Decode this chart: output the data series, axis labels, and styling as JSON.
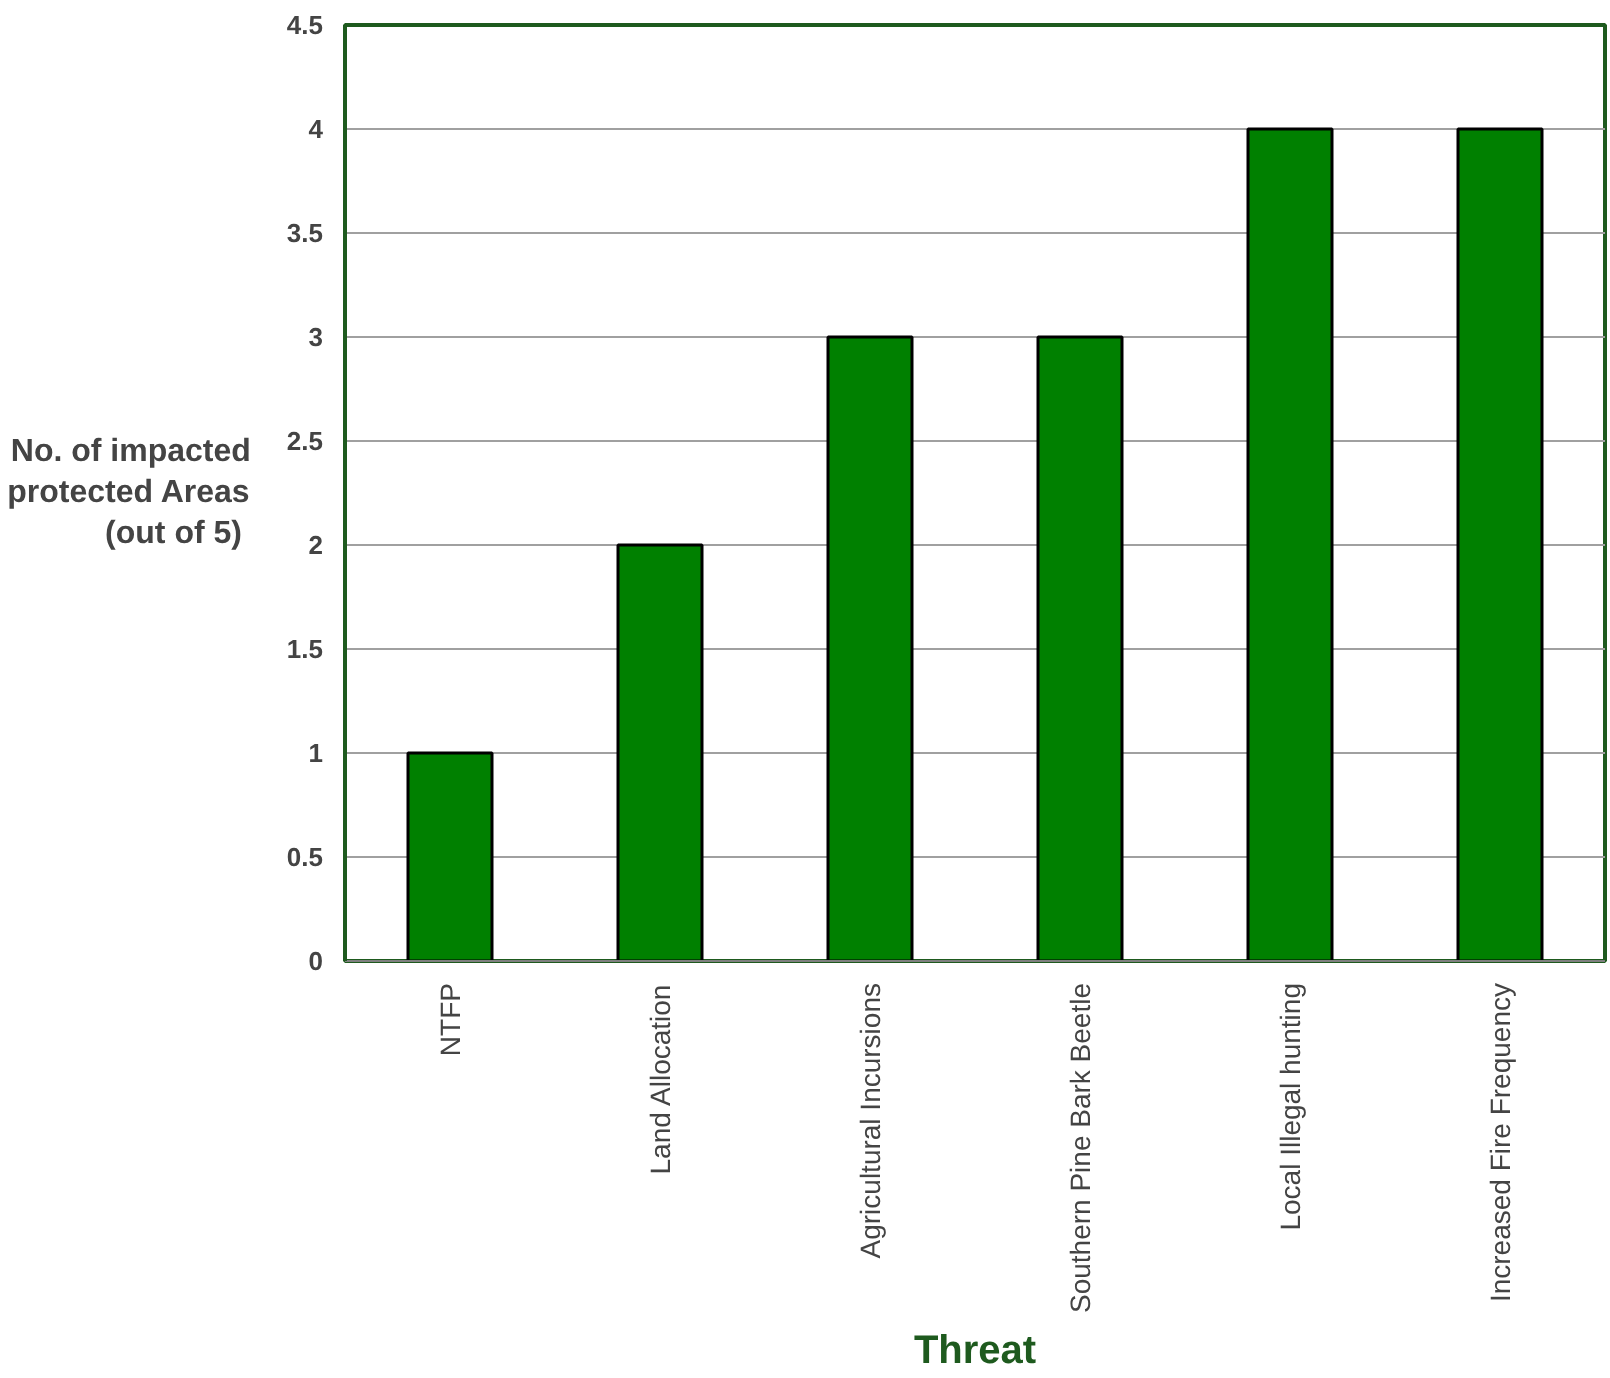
{
  "chart_data": {
    "type": "bar",
    "xlabel": "Threat",
    "ylabel": "No. of impacted\nprotected Areas\n (out of 5)",
    "categories": [
      "NTFP",
      "Land Allocation",
      "Agricultural Incursions",
      "Southern Pine Bark Beetle",
      "Local Illegal hunting",
      "Increased Fire Frequency"
    ],
    "values": [
      1,
      2,
      3,
      3,
      4,
      4
    ],
    "color": "#008000",
    "ylim": [
      0,
      4.5
    ],
    "yticks": [
      0,
      0.5,
      1,
      1.5,
      2,
      2.5,
      3,
      3.5,
      4,
      4.5
    ],
    "grid": "y"
  }
}
